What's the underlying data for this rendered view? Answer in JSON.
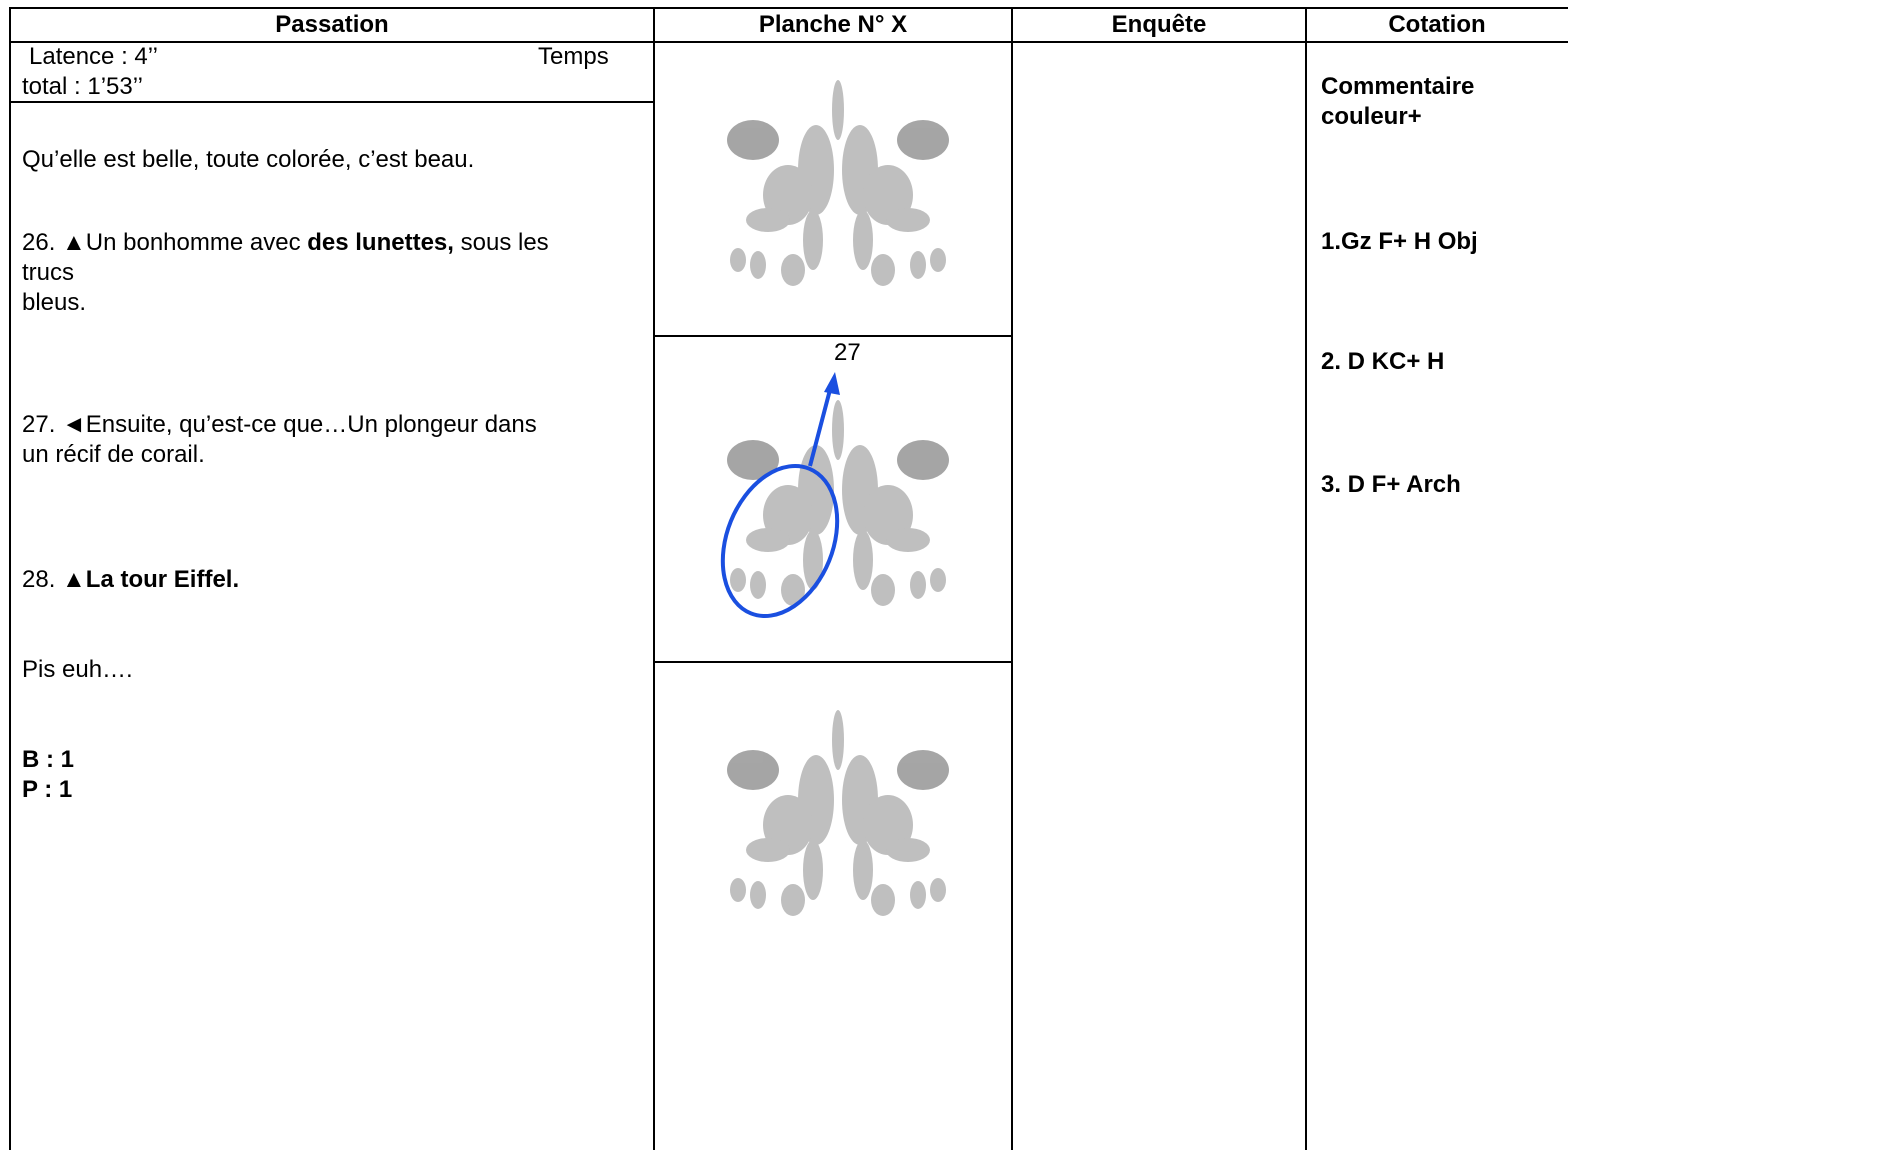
{
  "table": {
    "headers": [
      "Passation",
      "Planche N° X",
      "Enquête",
      "Cotation"
    ],
    "timing": [
      "Latence : 4’’",
      "Temps",
      "total : 1’53’’"
    ],
    "responses": [
      [
        [
          {
            "text": "Qu’elle est belle, toute colorée, c’est beau."
          }
        ]
      ],
      [
        [
          {
            "text": "26. ▲Un bonhomme avec "
          },
          {
            "text": "des lunettes,",
            "bold": true
          },
          {
            "text": " sous les"
          }
        ],
        [
          {
            "text": "trucs"
          }
        ],
        [
          {
            "text": "bleus."
          }
        ]
      ],
      [
        [
          {
            "text": "27. ◄Ensuite, qu’est-ce que…Un plongeur dans"
          }
        ],
        [
          {
            "text": "un récif de corail."
          }
        ]
      ],
      [
        [
          {
            "text": "28. ▲"
          },
          {
            "text": "La tour Eiffel.",
            "bold": true
          }
        ]
      ],
      [
        [
          {
            "text": "Pis euh…."
          }
        ]
      ],
      [
        [
          {
            "text": "B : 1",
            "bold": true
          }
        ],
        [
          {
            "text": "P : 1",
            "bold": true
          }
        ]
      ]
    ],
    "image_label": "27",
    "cotation": [
      [
        "Commentaire",
        "couleur+"
      ],
      [
        "1.Gz F+ H Obj"
      ],
      [
        "2. D KC+ H"
      ],
      [
        "3. D F+ Arch"
      ]
    ]
  }
}
